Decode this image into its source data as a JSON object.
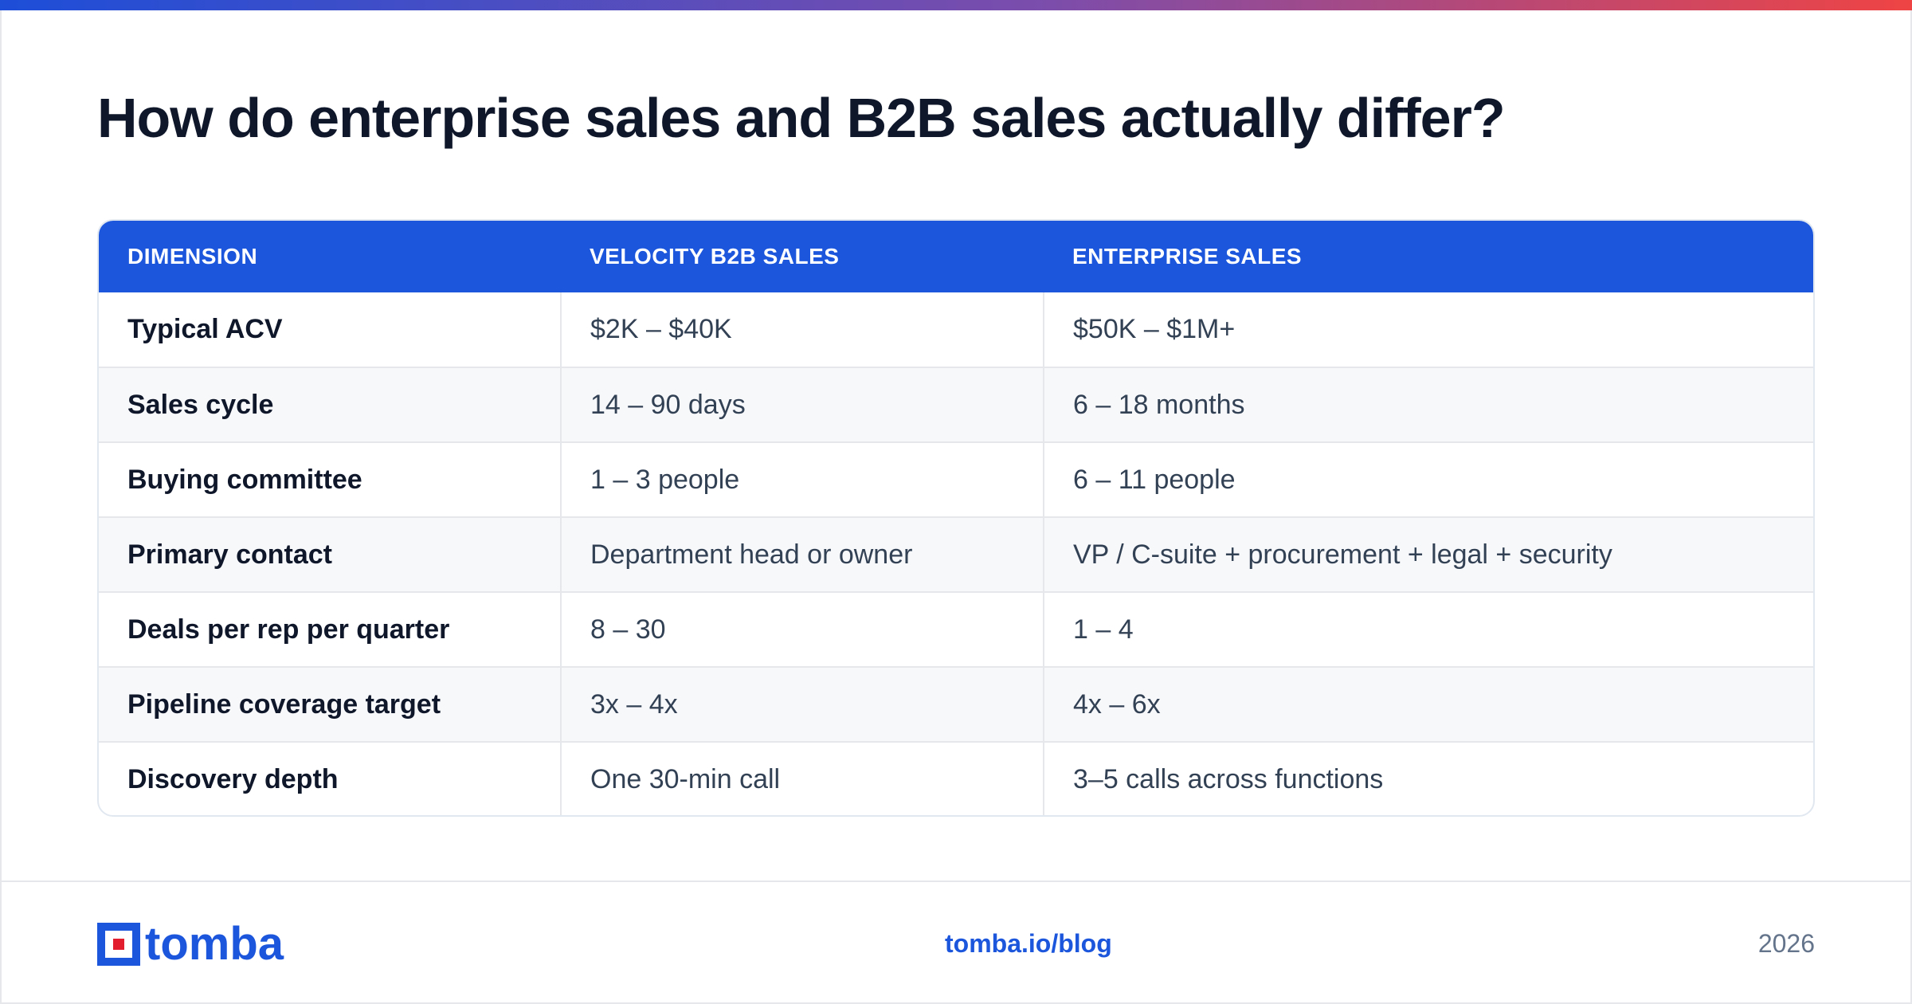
{
  "title": "How do enterprise sales and B2B sales actually differ?",
  "table": {
    "headers": [
      "DIMENSION",
      "VELOCITY B2B SALES",
      "ENTERPRISE SALES"
    ],
    "rows": [
      [
        "Typical ACV",
        "$2K – $40K",
        "$50K – $1M+"
      ],
      [
        "Sales cycle",
        "14 – 90 days",
        "6 – 18 months"
      ],
      [
        "Buying committee",
        "1 – 3 people",
        "6 – 11 people"
      ],
      [
        "Primary contact",
        "Department head or owner",
        "VP / C-suite + procurement + legal + security"
      ],
      [
        "Deals per rep per quarter",
        "8 – 30",
        "1 – 4"
      ],
      [
        "Pipeline coverage target",
        "3x – 4x",
        "4x – 6x"
      ],
      [
        "Discovery depth",
        "One 30-min call",
        "3–5 calls across functions"
      ]
    ]
  },
  "footer": {
    "logo_text": "tomba",
    "link": "tomba.io/blog",
    "year": "2026"
  },
  "colors": {
    "accent": "#1b56dc",
    "gradient_start": "#1d4ed8",
    "gradient_end": "#ef4444",
    "logo_red": "#e11d2e"
  }
}
